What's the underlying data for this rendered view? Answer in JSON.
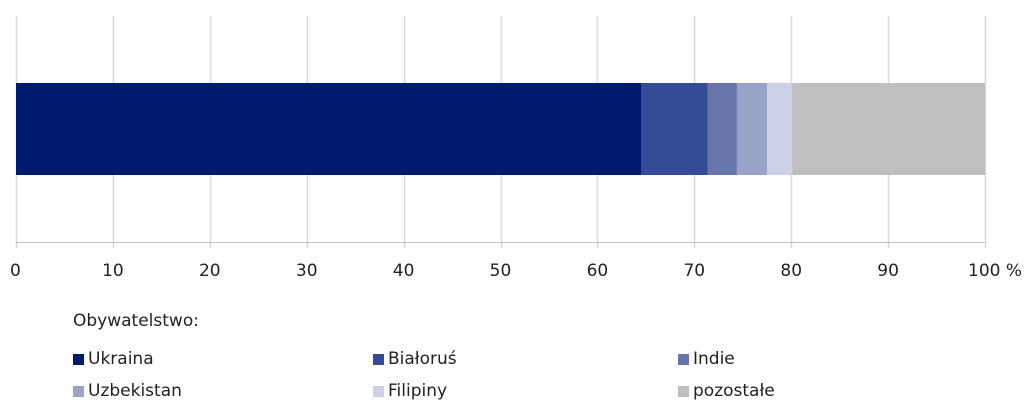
{
  "chart_data": {
    "type": "bar",
    "orientation": "horizontal",
    "stacked": true,
    "categories": [
      ""
    ],
    "series": [
      {
        "name": "Ukraina",
        "values": [
          64.5
        ],
        "color": "#001a70"
      },
      {
        "name": "Białoruś",
        "values": [
          6.9
        ],
        "color": "#344b95"
      },
      {
        "name": "Indie",
        "values": [
          3.0
        ],
        "color": "#6676ab"
      },
      {
        "name": "Uzbekistan",
        "values": [
          3.1
        ],
        "color": "#99a3c8"
      },
      {
        "name": "Filipiny",
        "values": [
          2.6
        ],
        "color": "#ccd1e6"
      },
      {
        "name": "pozostałe",
        "values": [
          19.9
        ],
        "color": "#bfbfbf"
      }
    ],
    "xlim": [
      0,
      100
    ],
    "xticks": [
      0,
      10,
      20,
      30,
      40,
      50,
      60,
      70,
      80,
      90,
      100
    ],
    "xtick_labels": [
      "0",
      "10",
      "20",
      "30",
      "40",
      "50",
      "60",
      "70",
      "80",
      "90",
      "100 %"
    ],
    "grid": "vertical",
    "grid_color": "#d9d9d9",
    "legend_title": "Obywatelstwo:",
    "legend_position": "bottom"
  }
}
